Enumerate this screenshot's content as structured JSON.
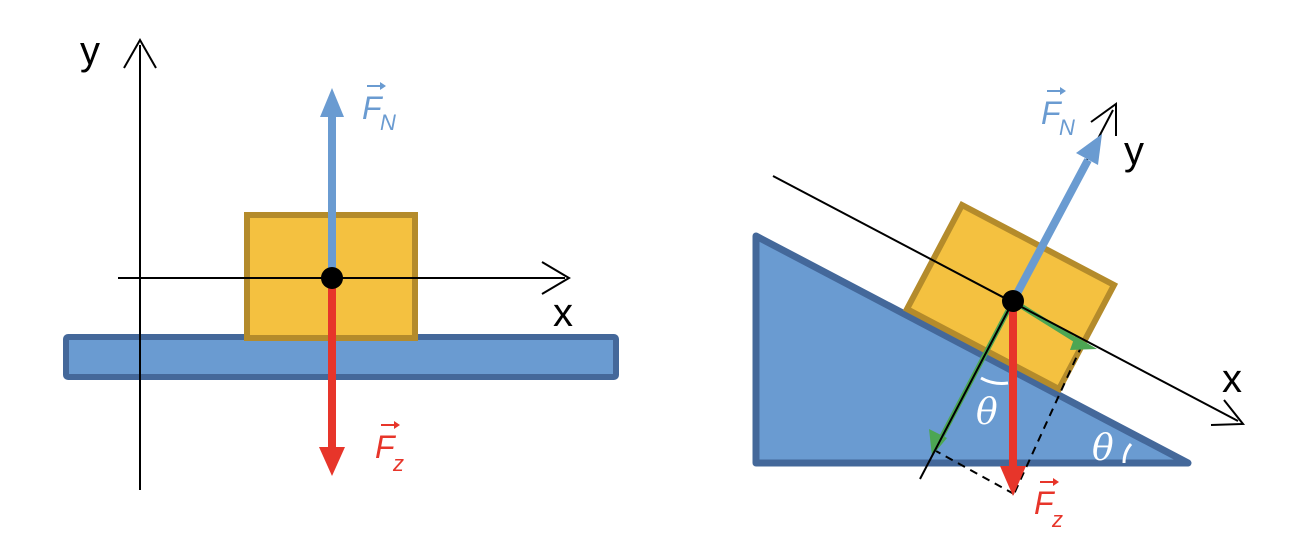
{
  "colors": {
    "surface_fill": "#6a9bd1",
    "surface_stroke": "#44689a",
    "block_fill": "#f4c140",
    "block_stroke": "#b48b2b",
    "normal_force": "#6a9bd1",
    "gravity_force": "#e7352a",
    "component": "#4ca653",
    "axis": "#000000",
    "angle_label": "#ffffff"
  },
  "left_diagram": {
    "axis_y_label": "y",
    "axis_x_label": "x",
    "normal_force": {
      "symbol": "F",
      "subscript": "N"
    },
    "gravity_force": {
      "symbol": "F",
      "subscript": "z"
    }
  },
  "right_diagram": {
    "axis_y_label": "y",
    "axis_x_label": "x",
    "normal_force": {
      "symbol": "F",
      "subscript": "N"
    },
    "gravity_force": {
      "symbol": "F",
      "subscript": "z"
    },
    "angle_at_force": "θ",
    "incline_angle": "θ"
  }
}
